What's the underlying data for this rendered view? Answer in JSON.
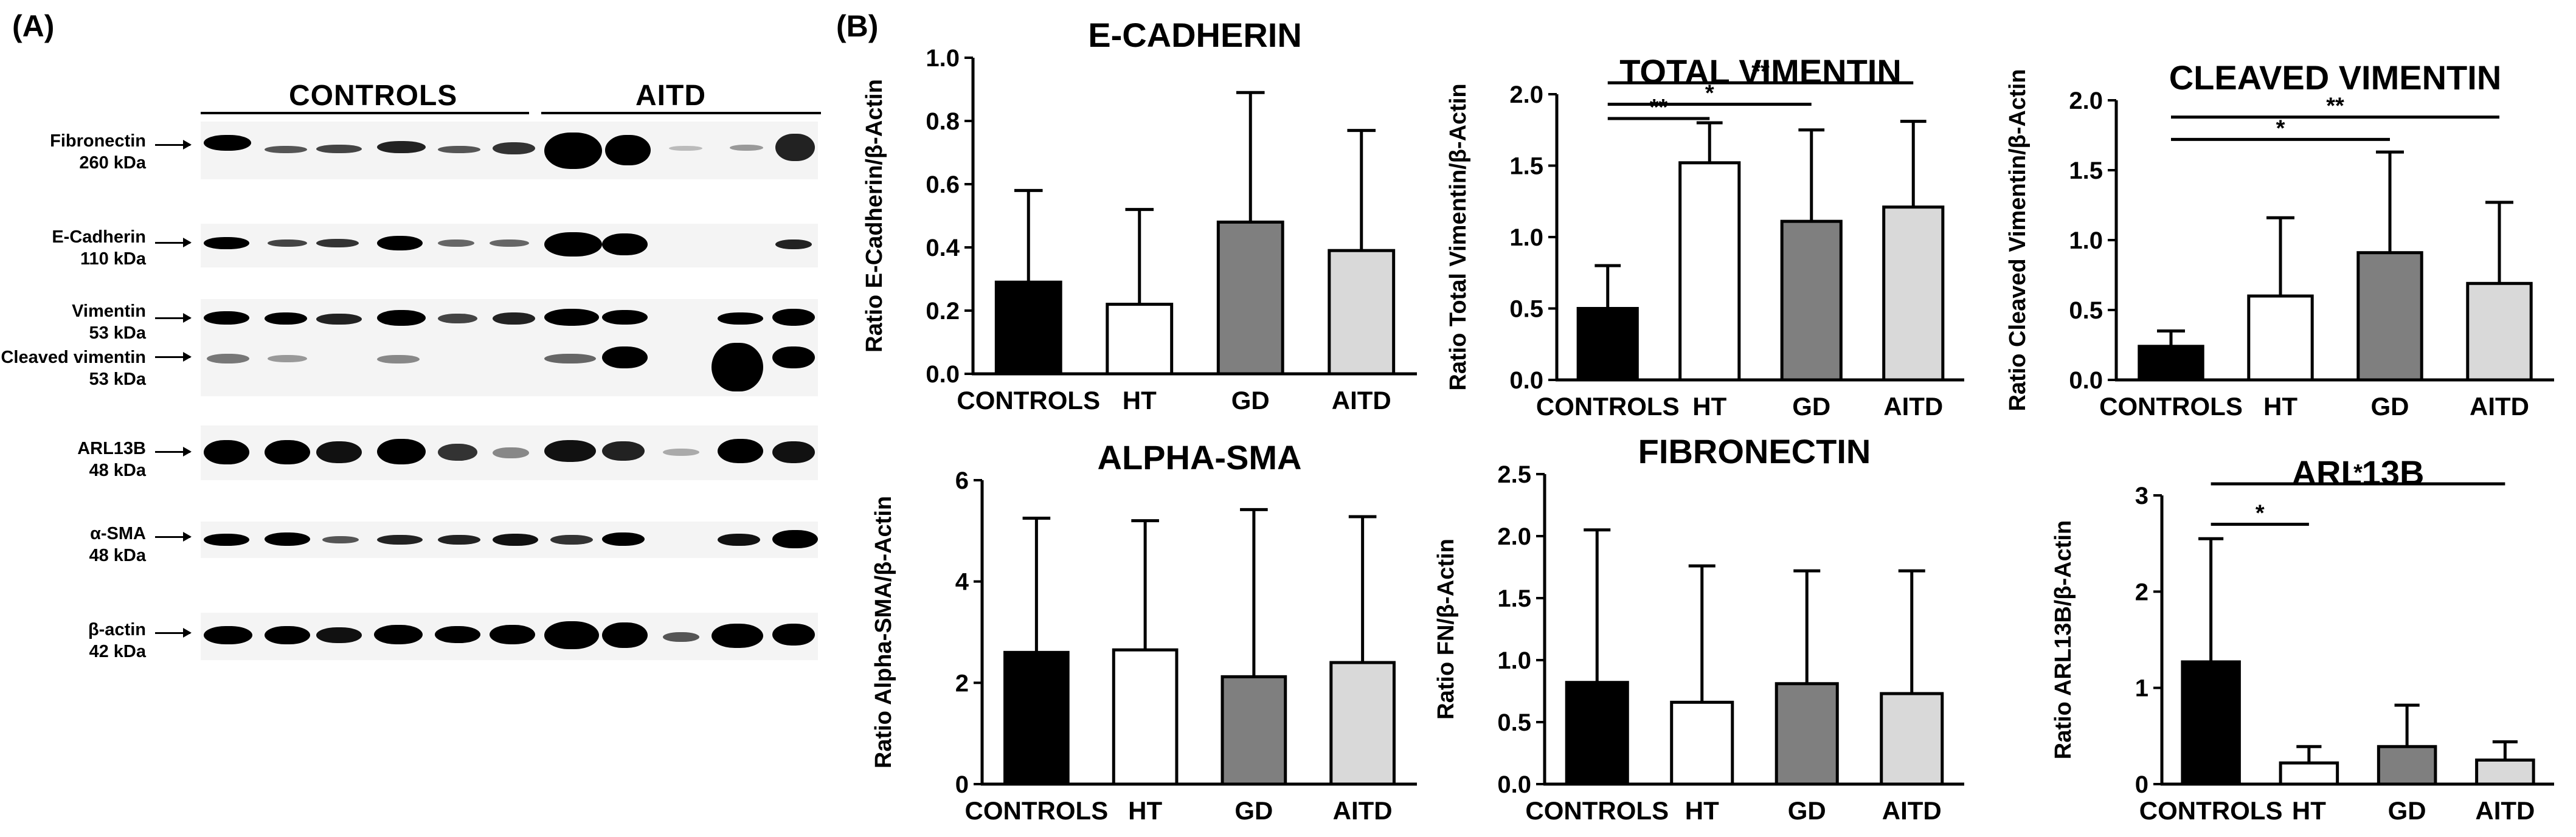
{
  "panel_a": {
    "label": "(A)",
    "groups": [
      "CONTROLS",
      "AITD"
    ],
    "blots": [
      {
        "name": "Fibronectin",
        "kda": "260 kDa"
      },
      {
        "name": "E-Cadherin",
        "kda": "110 kDa"
      },
      {
        "name": "Vimentin",
        "kda": "53 kDa"
      },
      {
        "name": "Cleaved vimentin",
        "kda": "53 kDa"
      },
      {
        "name": "ARL13B",
        "kda": "48 kDa"
      },
      {
        "name": "α-SMA",
        "kda": "48 kDa"
      },
      {
        "name": "β-actin",
        "kda": "42 kDa"
      }
    ]
  },
  "panel_b": {
    "label": "(B)"
  },
  "colors": {
    "CONTROLS": "#000000",
    "HT": "#ffffff",
    "GD": "#7f7f7f",
    "AITD": "#d9d9d9"
  },
  "chart_data": [
    {
      "type": "bar",
      "title": "E-CADHERIN",
      "ylabel": "Ratio E-Cadherin/β-Actin",
      "categories": [
        "CONTROLS",
        "HT",
        "GD",
        "AITD"
      ],
      "values": [
        0.29,
        0.22,
        0.48,
        0.39
      ],
      "errors": [
        0.29,
        0.3,
        0.41,
        0.38
      ],
      "ylim": [
        0,
        1.0
      ],
      "yticks": [
        "0.0",
        "0.2",
        "0.4",
        "0.6",
        "0.8",
        "1.0"
      ],
      "significance": []
    },
    {
      "type": "bar",
      "title": "TOTAL VIMENTIN",
      "ylabel": "Ratio Total Vimentin/β-Actin",
      "categories": [
        "CONTROLS",
        "HT",
        "GD",
        "AITD"
      ],
      "values": [
        0.5,
        1.52,
        1.11,
        1.21
      ],
      "errors": [
        0.3,
        0.28,
        0.64,
        0.6
      ],
      "ylim": [
        0,
        2.0
      ],
      "yticks": [
        "0.0",
        "0.5",
        "1.0",
        "1.5",
        "2.0"
      ],
      "significance": [
        {
          "from": "CONTROLS",
          "to": "AITD",
          "label": "**",
          "y": 2.08
        },
        {
          "from": "CONTROLS",
          "to": "GD",
          "label": "*",
          "y": 1.93
        },
        {
          "from": "CONTROLS",
          "to": "HT",
          "label": "**",
          "y": 1.83
        }
      ]
    },
    {
      "type": "bar",
      "title": "CLEAVED VIMENTIN",
      "ylabel": "Ratio Cleaved Vimentin/β-Actin",
      "categories": [
        "CONTROLS",
        "HT",
        "GD",
        "AITD"
      ],
      "values": [
        0.24,
        0.6,
        0.91,
        0.69
      ],
      "errors": [
        0.11,
        0.56,
        0.72,
        0.58
      ],
      "ylim": [
        0,
        2.0
      ],
      "yticks": [
        "0.0",
        "0.5",
        "1.0",
        "1.5",
        "2.0"
      ],
      "significance": [
        {
          "from": "CONTROLS",
          "to": "AITD",
          "label": "**",
          "y": 1.88
        },
        {
          "from": "CONTROLS",
          "to": "GD",
          "label": "*",
          "y": 1.72
        }
      ]
    },
    {
      "type": "bar",
      "title": "ALPHA-SMA",
      "ylabel": "Ratio Alpha-SMA/β-Actin",
      "categories": [
        "CONTROLS",
        "HT",
        "GD",
        "AITD"
      ],
      "values": [
        2.6,
        2.65,
        2.12,
        2.4
      ],
      "errors": [
        2.65,
        2.55,
        3.3,
        2.88
      ],
      "ylim": [
        0,
        6
      ],
      "yticks": [
        "0",
        "2",
        "4",
        "6"
      ],
      "significance": []
    },
    {
      "type": "bar",
      "title": "FIBRONECTIN",
      "ylabel": "Ratio FN/β-Actin",
      "categories": [
        "CONTROLS",
        "HT",
        "GD",
        "AITD"
      ],
      "values": [
        0.82,
        0.66,
        0.81,
        0.73
      ],
      "errors": [
        1.23,
        1.1,
        0.91,
        0.99
      ],
      "ylim": [
        0,
        2.5
      ],
      "yticks": [
        "0.0",
        "0.5",
        "1.0",
        "1.5",
        "2.0",
        "2.5"
      ],
      "significance": []
    },
    {
      "type": "bar",
      "title": "ARL13B",
      "ylabel": "Ratio ARL13B/β-Actin",
      "categories": [
        "CONTROLS",
        "HT",
        "GD",
        "AITD"
      ],
      "values": [
        1.27,
        0.22,
        0.39,
        0.25
      ],
      "errors": [
        1.28,
        0.17,
        0.43,
        0.19
      ],
      "ylim": [
        0,
        3
      ],
      "yticks": [
        "0",
        "1",
        "2",
        "3"
      ],
      "significance": [
        {
          "from": "CONTROLS",
          "to": "AITD",
          "label": "*",
          "y": 3.12
        },
        {
          "from": "CONTROLS",
          "to": "HT",
          "label": "*",
          "y": 2.7
        }
      ]
    }
  ]
}
